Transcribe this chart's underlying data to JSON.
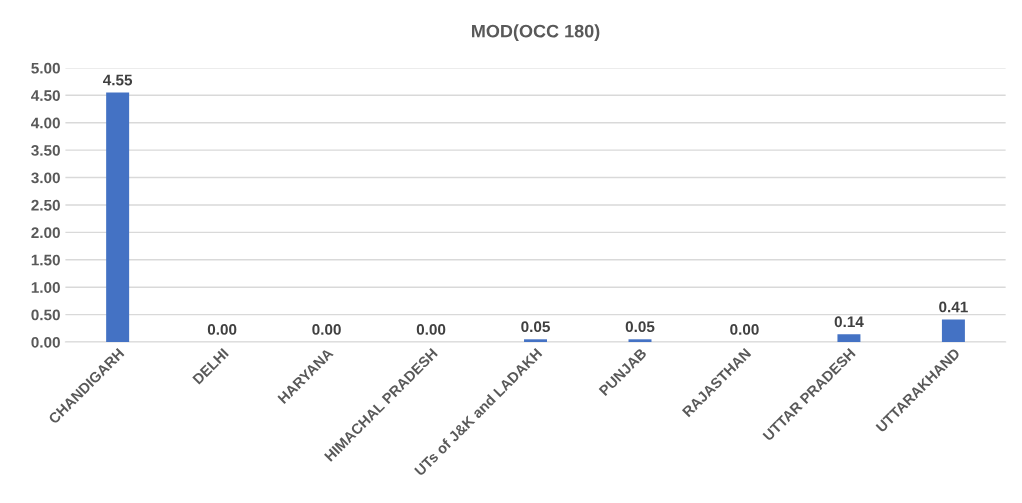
{
  "chart_data": {
    "type": "bar",
    "title": "MOD(OCC 180)",
    "categories": [
      "CHANDIGARH",
      "DELHI",
      "HARYANA",
      "HIMACHAL PRADESH",
      "UTs of J&K and LADAKH",
      "PUNJAB",
      "RAJASTHAN",
      "UTTAR PRADESH",
      "UTTARAKHAND"
    ],
    "values": [
      4.55,
      0.0,
      0.0,
      0.0,
      0.05,
      0.05,
      0.0,
      0.14,
      0.41
    ],
    "value_labels": [
      "4.55",
      "0.00",
      "0.00",
      "0.00",
      "0.05",
      "0.05",
      "0.00",
      "0.14",
      "0.41"
    ],
    "color": "#4472c4",
    "ylim": [
      0,
      5
    ],
    "yticks": [
      {
        "value": 0,
        "label": "0.00"
      },
      {
        "value": 0.5,
        "label": "0.50"
      },
      {
        "value": 1,
        "label": "1.00"
      },
      {
        "value": 1.5,
        "label": "1.50"
      },
      {
        "value": 2,
        "label": "2.00"
      },
      {
        "value": 2.5,
        "label": "2.50"
      },
      {
        "value": 3,
        "label": "3.00"
      },
      {
        "value": 3.5,
        "label": "3.50"
      },
      {
        "value": 4,
        "label": "4.00"
      },
      {
        "value": 4.5,
        "label": "4.50"
      },
      {
        "value": 5,
        "label": "5.00"
      }
    ],
    "grid": "y"
  }
}
